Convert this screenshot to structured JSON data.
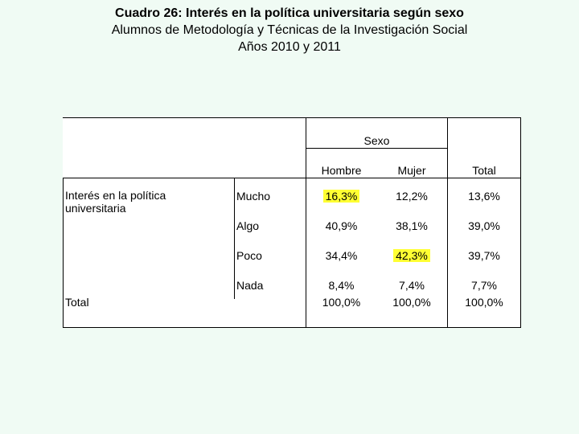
{
  "title": {
    "line1": "Cuadro 26: Interés en la política universitaria según sexo",
    "line2": "Alumnos de Metodología y Técnicas de la Investigación Social",
    "line3": "Años 2010 y 2011"
  },
  "table": {
    "group_header": "Sexo",
    "columns": [
      "Hombre",
      "Mujer",
      "Total"
    ],
    "row_variable": "Interés en la política universitaria",
    "rows": [
      {
        "label": "Mucho",
        "values": [
          "16,3%",
          "12,2%",
          "13,6%"
        ]
      },
      {
        "label": "Algo",
        "values": [
          "40,9%",
          "38,1%",
          "39,0%"
        ]
      },
      {
        "label": "Poco",
        "values": [
          "34,4%",
          "42,3%",
          "39,7%"
        ]
      },
      {
        "label": "Nada",
        "values": [
          "8,4%",
          "7,4%",
          "7,7%"
        ]
      }
    ],
    "total_label": "Total",
    "total_values": [
      "100,0%",
      "100,0%",
      "100,0%"
    ],
    "highlight_color": "#ffff33"
  }
}
